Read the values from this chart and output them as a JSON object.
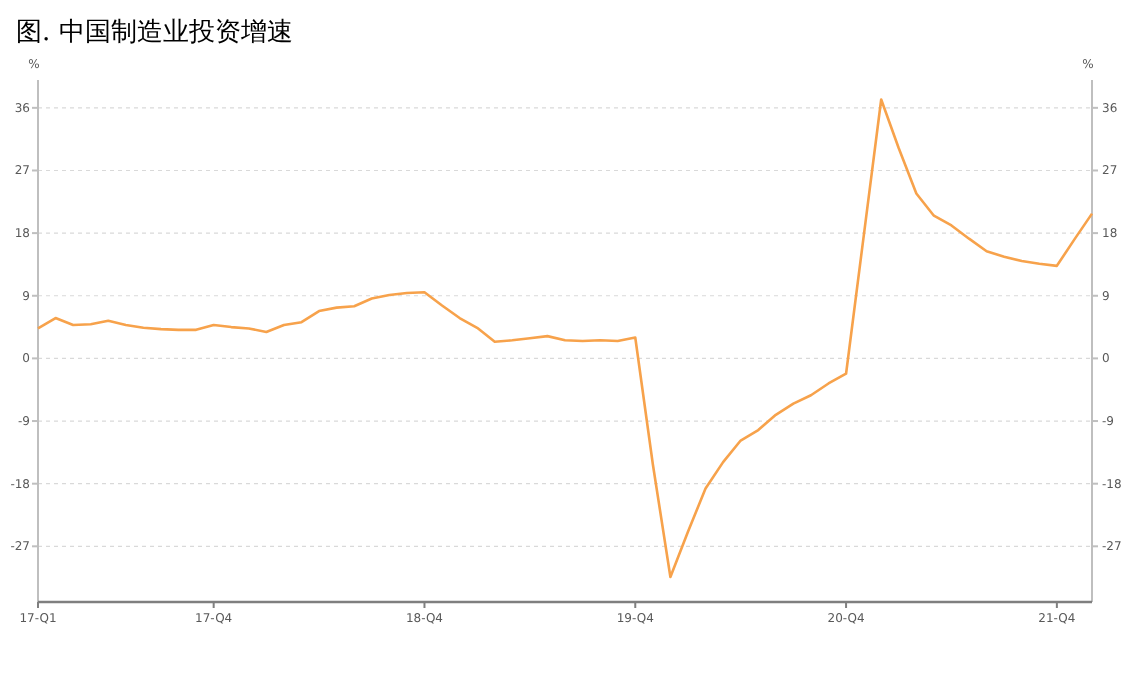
{
  "chart_data": {
    "type": "line",
    "title": "图. 中国制造业投资增速",
    "categories": [
      "17-Q1",
      null,
      null,
      null,
      null,
      null,
      null,
      null,
      null,
      null,
      "17-Q4",
      null,
      null,
      null,
      null,
      null,
      null,
      null,
      null,
      null,
      null,
      null,
      "18-Q4",
      null,
      null,
      null,
      null,
      null,
      null,
      null,
      null,
      null,
      null,
      null,
      "19-Q4",
      null,
      null,
      null,
      null,
      null,
      null,
      null,
      null,
      null,
      null,
      null,
      "20-Q4",
      null,
      null,
      null,
      null,
      null,
      null,
      null,
      null,
      null,
      null,
      null,
      "21-Q4",
      null,
      null
    ],
    "series": [
      {
        "color": "#f7a24b",
        "values": [
          4.3,
          5.8,
          4.8,
          4.9,
          5.4,
          4.8,
          4.4,
          4.2,
          4.1,
          4.1,
          4.8,
          4.5,
          4.3,
          3.8,
          4.8,
          5.2,
          6.8,
          7.3,
          7.5,
          8.6,
          9.1,
          9.4,
          9.5,
          7.6,
          5.8,
          4.4,
          2.4,
          2.6,
          2.9,
          3.2,
          2.6,
          2.5,
          2.6,
          2.5,
          3.0,
          -15.2,
          -31.4,
          -24.9,
          -18.7,
          -14.9,
          -11.8,
          -10.3,
          -8.1,
          -6.5,
          -5.3,
          -3.6,
          -2.2,
          17.5,
          37.2,
          30.2,
          23.7,
          20.5,
          19.1,
          17.2,
          15.4,
          14.6,
          14.0,
          13.6,
          13.3,
          17.1,
          20.8
        ]
      }
    ],
    "ylim": [
      -35,
      40
    ],
    "yticks": [
      -27,
      -18,
      -9,
      0,
      9,
      18,
      27,
      36
    ],
    "ylabel": "%",
    "y2lim": [
      -35,
      40
    ],
    "y2ticks": [
      -27,
      -18,
      -9,
      0,
      9,
      18,
      27,
      36
    ],
    "y2label": "%",
    "grid": "y"
  }
}
